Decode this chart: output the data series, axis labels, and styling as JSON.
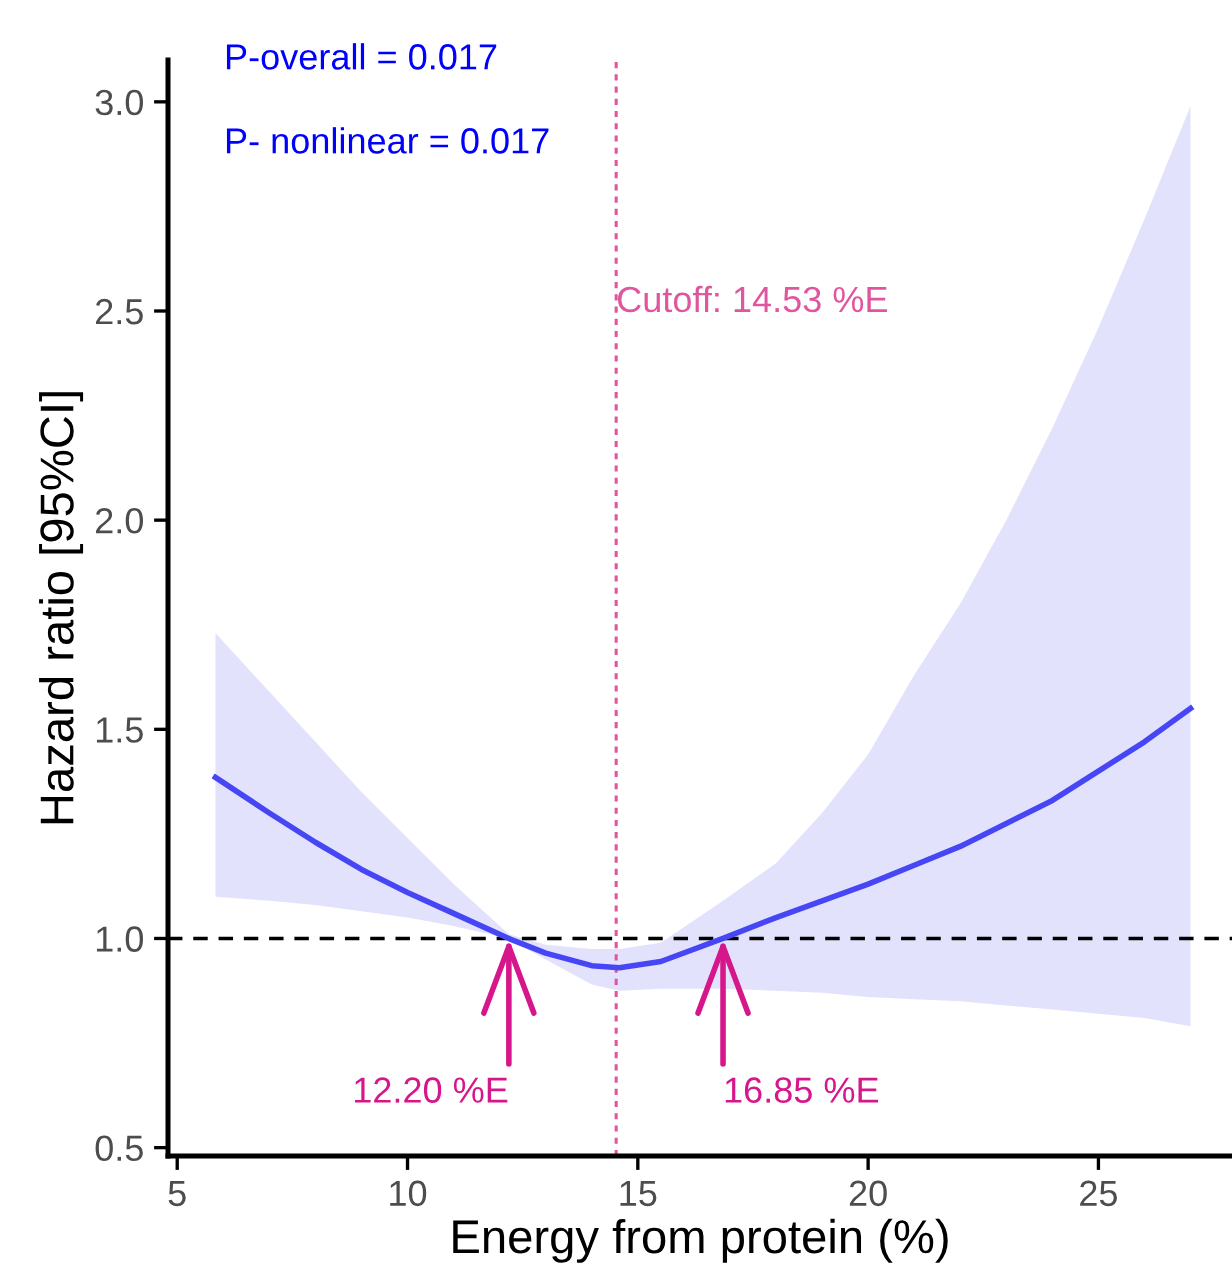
{
  "chart_data": {
    "type": "line",
    "xlabel": "Energy from protein (%)",
    "ylabel": "Hazard ratio [95%CI]",
    "series": [
      {
        "color": "#4646f5",
        "x": [
          5.83,
          7,
          8,
          9,
          10,
          11,
          12.2,
          13,
          14,
          14.6,
          15.5,
          16.85,
          18,
          19,
          20,
          21,
          22,
          23,
          24,
          25,
          26,
          27
        ],
        "values": [
          1.385,
          1.3,
          1.23,
          1.165,
          1.11,
          1.06,
          1.0,
          0.965,
          0.935,
          0.93,
          0.945,
          1.0,
          1.05,
          1.09,
          1.13,
          1.175,
          1.22,
          1.275,
          1.33,
          1.4,
          1.47,
          1.55
        ],
        "upper": [
          1.73,
          1.59,
          1.47,
          1.35,
          1.24,
          1.13,
          1.01,
          0.985,
          0.975,
          0.975,
          0.99,
          1.09,
          1.18,
          1.3,
          1.44,
          1.63,
          1.8,
          2.0,
          2.22,
          2.46,
          2.72,
          2.99
        ],
        "lower": [
          1.1,
          1.09,
          1.08,
          1.065,
          1.05,
          1.03,
          1.0,
          0.95,
          0.89,
          0.875,
          0.88,
          0.88,
          0.875,
          0.87,
          0.86,
          0.855,
          0.85,
          0.84,
          0.83,
          0.82,
          0.81,
          0.79
        ]
      }
    ],
    "xlim": [
      4.8,
      27.9
    ],
    "ylim": [
      0.48,
      3.1
    ],
    "xticks": [
      5,
      10,
      15,
      20,
      25
    ],
    "yticks": [
      {
        "value": 0.5,
        "label": "0.5"
      },
      {
        "value": 1.0,
        "label": "1.0"
      },
      {
        "value": 1.5,
        "label": "1.5"
      },
      {
        "value": 2.0,
        "label": "2.0"
      },
      {
        "value": 2.5,
        "label": "2.5"
      },
      {
        "value": 3.0,
        "label": "3.0"
      }
    ],
    "ref_lines": [
      {
        "axis": "y",
        "value": 1.0,
        "color": "#000000",
        "line_style": "dashed"
      },
      {
        "axis": "x",
        "value": 14.53,
        "label": "Cutoff: 14.53 %E",
        "color": "#e0569e",
        "line_style": "dotted"
      }
    ],
    "annotations": [
      "P-overall = 0.017",
      "P- nonlinear = 0.017",
      {
        "text": "12.20 %E",
        "x": 12.2,
        "y": 1.0
      },
      {
        "text": "16.85 %E",
        "x": 16.85,
        "y": 1.0
      }
    ],
    "grid": false,
    "legend": false,
    "marker": "none",
    "line_style": "solid"
  }
}
